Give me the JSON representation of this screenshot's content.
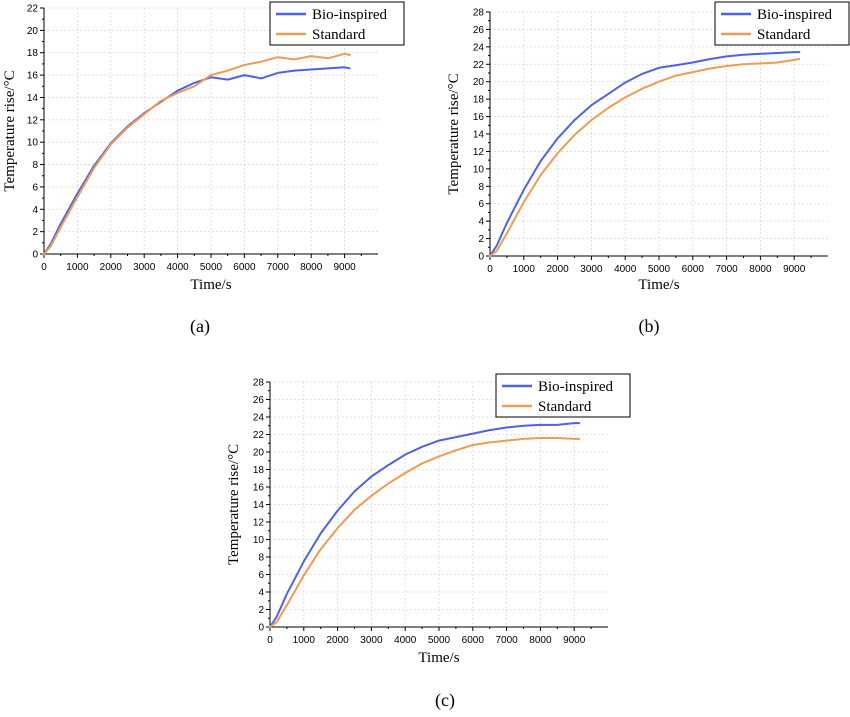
{
  "colors": {
    "bio": "#4f63e0",
    "std": "#ee9c55",
    "grid": "#d9d9d9",
    "axis": "#000000"
  },
  "chart_data": [
    {
      "panel_label": "(a)",
      "type": "line",
      "xlabel": "Time/s",
      "ylabel": "Temperature rise/°C",
      "xlim": [
        0,
        10000
      ],
      "ylim": [
        0,
        22
      ],
      "xticks": [
        0,
        1000,
        2000,
        3000,
        4000,
        5000,
        6000,
        7000,
        8000,
        9000
      ],
      "yticks": [
        0,
        2,
        4,
        6,
        8,
        10,
        12,
        14,
        16,
        18,
        20,
        22
      ],
      "grid": true,
      "legend_position": "top-right",
      "series": [
        {
          "name": "Bio-inspired",
          "color": "#4f63e0",
          "x": [
            0,
            200,
            500,
            1000,
            1500,
            2000,
            2500,
            3000,
            3500,
            4000,
            4500,
            5000,
            5500,
            6000,
            6500,
            7000,
            7500,
            8000,
            8500,
            9000,
            9150
          ],
          "y": [
            0,
            0.9,
            2.7,
            5.4,
            7.9,
            9.9,
            11.4,
            12.6,
            13.6,
            14.6,
            15.3,
            15.8,
            15.6,
            16.0,
            15.7,
            16.2,
            16.4,
            16.5,
            16.6,
            16.7,
            16.6
          ]
        },
        {
          "name": "Standard",
          "color": "#ee9c55",
          "x": [
            0,
            200,
            500,
            1000,
            1500,
            2000,
            2500,
            3000,
            3500,
            4000,
            4500,
            5000,
            5500,
            6000,
            6500,
            7000,
            7500,
            8000,
            8500,
            9000,
            9150
          ],
          "y": [
            0,
            0.7,
            2.4,
            5.1,
            7.7,
            9.8,
            11.3,
            12.5,
            13.7,
            14.4,
            15.0,
            16.0,
            16.4,
            16.9,
            17.2,
            17.6,
            17.4,
            17.7,
            17.5,
            17.9,
            17.8
          ]
        }
      ]
    },
    {
      "panel_label": "(b)",
      "type": "line",
      "xlabel": "Time/s",
      "ylabel": "Temperature rise/°C",
      "xlim": [
        0,
        10000
      ],
      "ylim": [
        0,
        28
      ],
      "xticks": [
        0,
        1000,
        2000,
        3000,
        4000,
        5000,
        6000,
        7000,
        8000,
        9000
      ],
      "yticks": [
        0,
        2,
        4,
        6,
        8,
        10,
        12,
        14,
        16,
        18,
        20,
        22,
        24,
        26,
        28
      ],
      "grid": true,
      "legend_position": "top-right",
      "series": [
        {
          "name": "Bio-inspired",
          "color": "#4f63e0",
          "x": [
            0,
            200,
            500,
            1000,
            1500,
            2000,
            2500,
            3000,
            3500,
            4000,
            4500,
            5000,
            5500,
            6000,
            6500,
            7000,
            7500,
            8000,
            8500,
            9000,
            9150
          ],
          "y": [
            0,
            1.2,
            3.8,
            7.6,
            10.9,
            13.5,
            15.6,
            17.3,
            18.6,
            19.9,
            20.9,
            21.6,
            21.9,
            22.2,
            22.6,
            22.9,
            23.1,
            23.2,
            23.3,
            23.4,
            23.4
          ]
        },
        {
          "name": "Standard",
          "color": "#ee9c55",
          "x": [
            0,
            200,
            500,
            1000,
            1500,
            2000,
            2500,
            3000,
            3500,
            4000,
            4500,
            5000,
            5500,
            6000,
            6500,
            7000,
            7500,
            8000,
            8500,
            9000,
            9150
          ],
          "y": [
            0,
            0.6,
            2.6,
            6.2,
            9.3,
            11.8,
            13.9,
            15.6,
            17.0,
            18.2,
            19.2,
            20.0,
            20.7,
            21.1,
            21.5,
            21.8,
            22.0,
            22.1,
            22.2,
            22.5,
            22.6
          ]
        }
      ]
    },
    {
      "panel_label": "(c)",
      "type": "line",
      "xlabel": "Time/s",
      "ylabel": "Temperature rise/°C",
      "xlim": [
        0,
        10000
      ],
      "ylim": [
        0,
        28
      ],
      "xticks": [
        0,
        1000,
        2000,
        3000,
        4000,
        5000,
        6000,
        7000,
        8000,
        9000
      ],
      "yticks": [
        0,
        2,
        4,
        6,
        8,
        10,
        12,
        14,
        16,
        18,
        20,
        22,
        24,
        26,
        28
      ],
      "grid": true,
      "legend_position": "top-right",
      "series": [
        {
          "name": "Bio-inspired",
          "color": "#4f63e0",
          "x": [
            0,
            200,
            500,
            1000,
            1500,
            2000,
            2500,
            3000,
            3500,
            4000,
            4500,
            5000,
            5500,
            6000,
            6500,
            7000,
            7500,
            8000,
            8500,
            9000,
            9150
          ],
          "y": [
            0,
            1.2,
            3.8,
            7.5,
            10.7,
            13.3,
            15.5,
            17.2,
            18.5,
            19.7,
            20.6,
            21.3,
            21.7,
            22.1,
            22.5,
            22.8,
            23.0,
            23.1,
            23.1,
            23.3,
            23.3
          ]
        },
        {
          "name": "Standard",
          "color": "#ee9c55",
          "x": [
            0,
            200,
            500,
            1000,
            1500,
            2000,
            2500,
            3000,
            3500,
            4000,
            4500,
            5000,
            5500,
            6000,
            6500,
            7000,
            7500,
            8000,
            8500,
            9000,
            9150
          ],
          "y": [
            0,
            0.6,
            2.5,
            5.9,
            8.9,
            11.3,
            13.4,
            15.0,
            16.4,
            17.6,
            18.7,
            19.5,
            20.2,
            20.8,
            21.1,
            21.3,
            21.5,
            21.6,
            21.6,
            21.5,
            21.5
          ]
        }
      ]
    }
  ]
}
